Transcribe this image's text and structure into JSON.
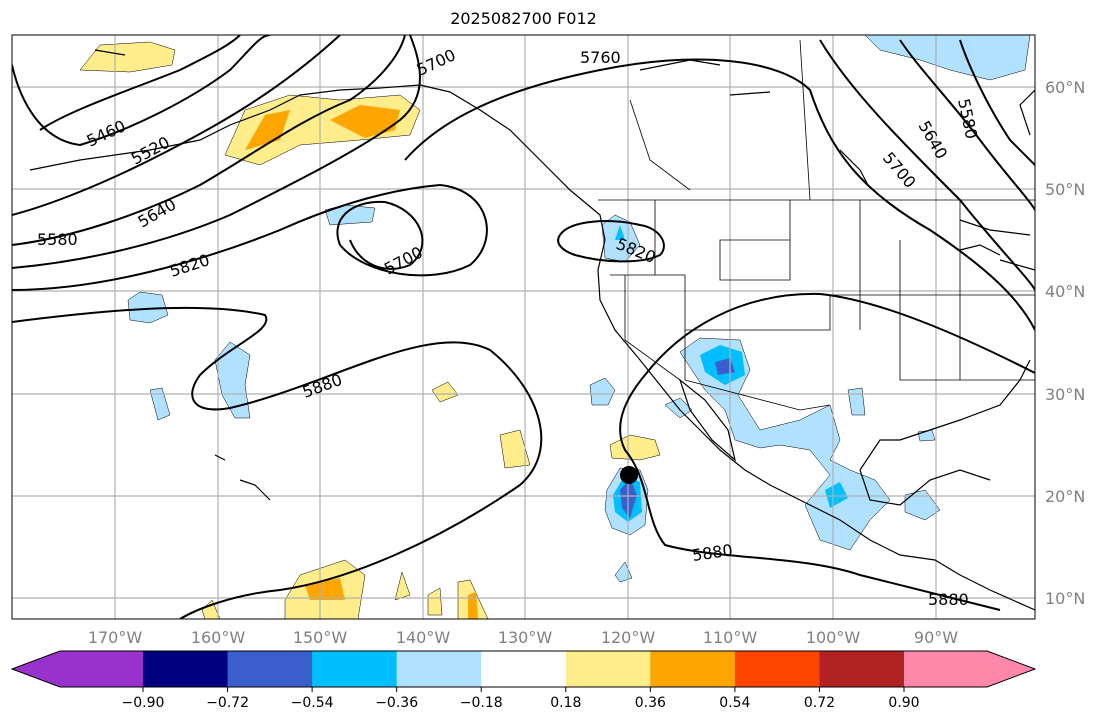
{
  "title": "2025082700 F012",
  "lon_labels": [
    "170°W",
    "160°W",
    "150°W",
    "140°W",
    "130°W",
    "120°W",
    "110°W",
    "100°W",
    "90°W"
  ],
  "lat_labels": [
    "60°N",
    "50°N",
    "40°N",
    "30°N",
    "20°N",
    "10°N"
  ],
  "contour_labels": {
    "c5460": "5460",
    "c5520": "5520",
    "c5580": "5580",
    "c5640": "5640",
    "c5700a": "5700",
    "c5760": "5760",
    "c5820a": "5820",
    "c5700b": "5700",
    "c5820b": "5820",
    "c5880a": "5880",
    "c5880b": "5880",
    "c5880c": "5880",
    "c5700c": "5700",
    "c5640b": "5640",
    "c5580b": "5580"
  },
  "colorbar": {
    "colors": [
      "#9932CC",
      "#000080",
      "#3A5FCD",
      "#00BFFF",
      "#B0E2FF",
      "#FFFFFF",
      "#FFEC8B",
      "#FFA500",
      "#FF4500",
      "#B22222",
      "#FF88AA"
    ],
    "ticks": [
      "−0.90",
      "−0.72",
      "−0.54",
      "−0.36",
      "−0.18",
      "0.18",
      "0.36",
      "0.54",
      "0.72",
      "0.90"
    ]
  },
  "fill_colors": {
    "lightblue": "#B0E2FF",
    "blue": "#00BFFF",
    "royal": "#3A5FCD",
    "yellow": "#FFEC8B",
    "orange": "#FFA500"
  }
}
